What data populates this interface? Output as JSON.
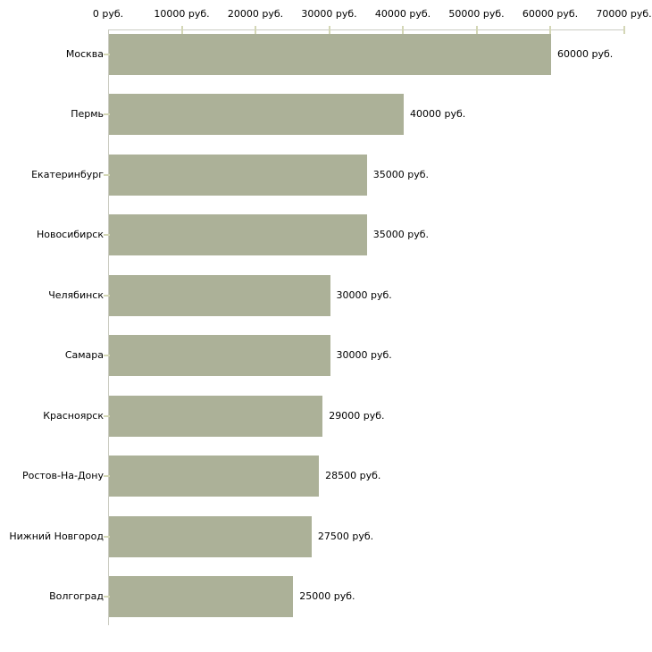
{
  "chart_data": {
    "type": "bar",
    "orientation": "horizontal",
    "title": "",
    "categories": [
      "Москва",
      "Пермь",
      "Екатеринбург",
      "Новосибирск",
      "Челябинск",
      "Самара",
      "Красноярск",
      "Ростов-На-Дону",
      "Нижний Новгород",
      "Волгоград"
    ],
    "values": [
      60000,
      40000,
      35000,
      35000,
      30000,
      30000,
      29000,
      28500,
      27500,
      25000
    ],
    "bar_value_labels": [
      "60000 руб.",
      "40000 руб.",
      "35000 руб.",
      "35000 руб.",
      "30000 руб.",
      "30000 руб.",
      "29000 руб.",
      "28500 руб.",
      "27500 руб.",
      "25000 руб."
    ],
    "x_tick_labels": [
      "0 руб.",
      "10000 руб.",
      "20000 руб.",
      "30000 руб.",
      "40000 руб.",
      "50000 руб.",
      "60000 руб.",
      "70000 руб."
    ],
    "x_tick_values": [
      0,
      10000,
      20000,
      30000,
      40000,
      50000,
      60000,
      70000
    ],
    "xlim": [
      0,
      70000
    ],
    "unit_suffix": "руб.",
    "axis_position": "top",
    "grid": false,
    "legend": false,
    "colors": {
      "bar": "#acb198",
      "axis_line": "#cbccc2",
      "tick_mark": "#d4d7b6",
      "text": "#000000",
      "background": "#ffffff"
    }
  }
}
